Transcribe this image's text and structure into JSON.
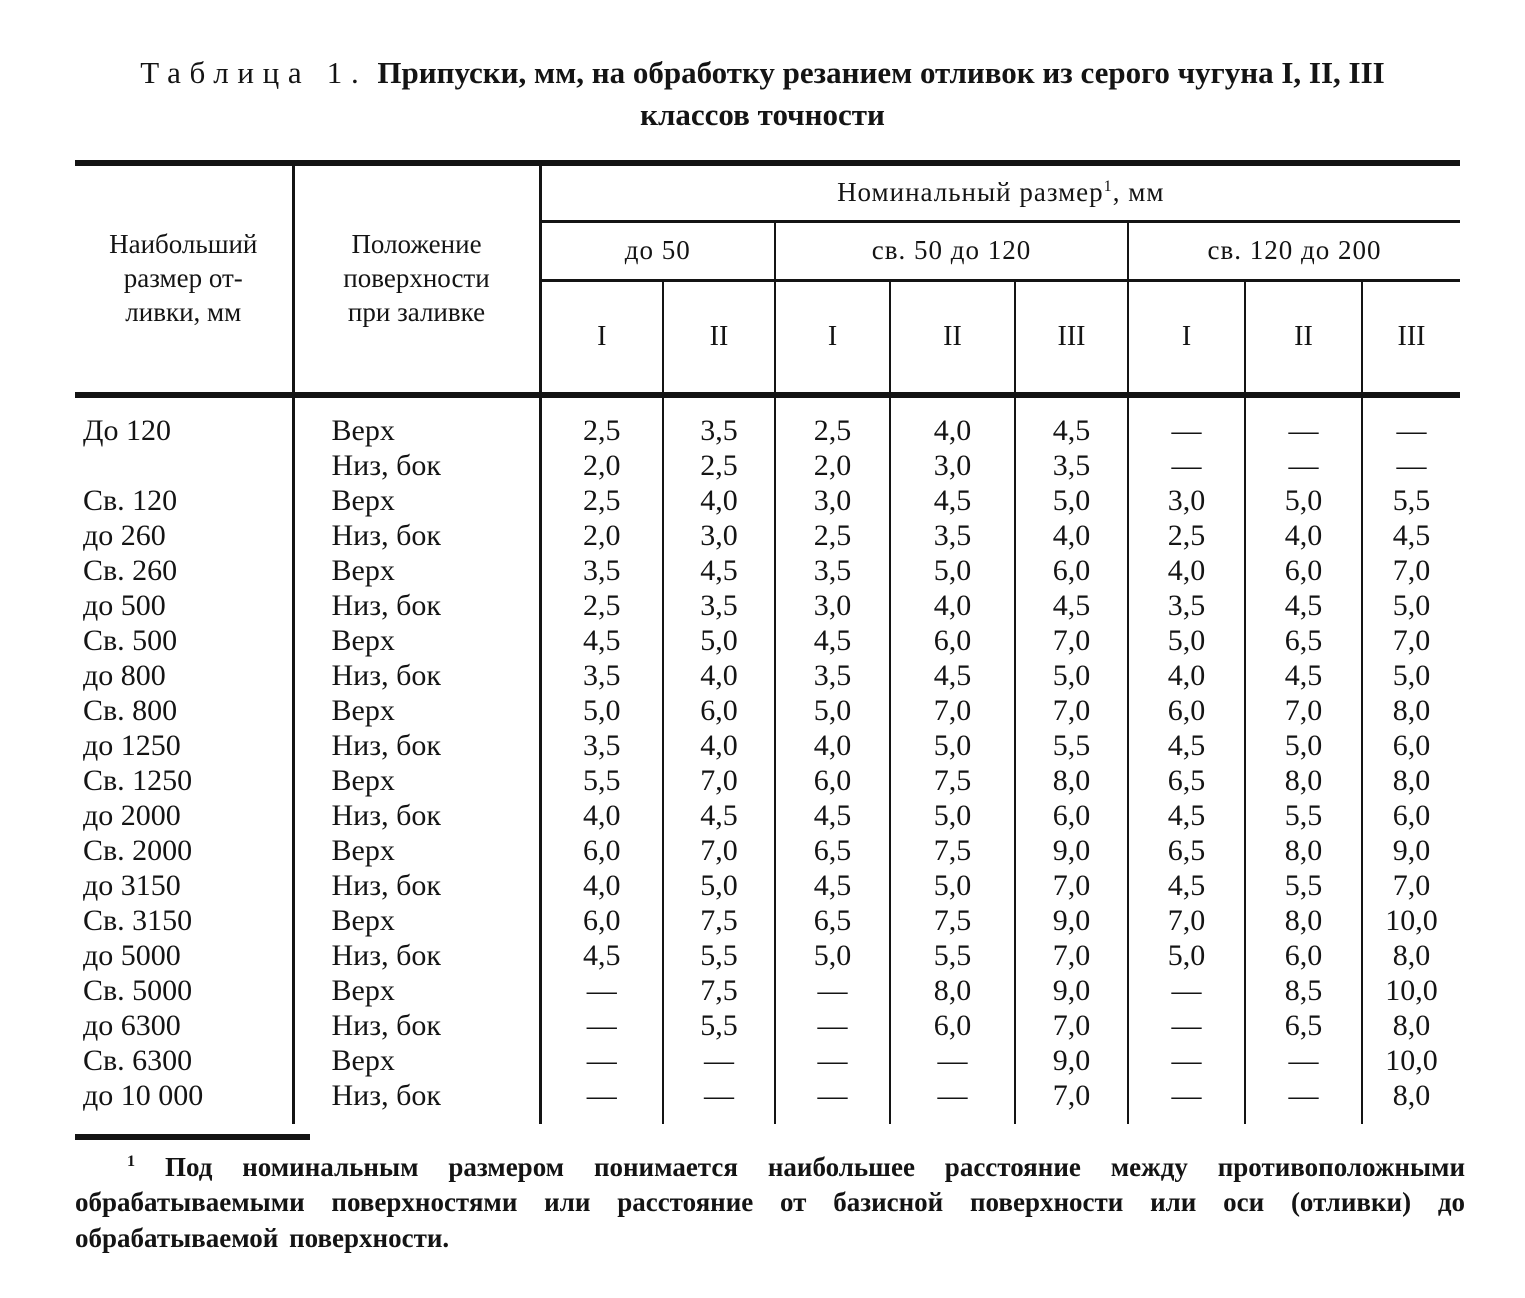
{
  "title": {
    "label": "Таблица 1.",
    "text": "Припуски, мм, на обработку резанием отливок из серого чугуна I, II, III классов точности"
  },
  "table": {
    "col1_header": "Наибольший\nразмер от-\nливки, мм",
    "col2_header": "Положение\nповерхности\nпри заливке",
    "nominal": {
      "label": "Номинальный размер",
      "sup": "1",
      "suffix": ", мм"
    },
    "groups": [
      {
        "label": "до 50",
        "classes": [
          "I",
          "II"
        ]
      },
      {
        "label": "св. 50 до 120",
        "classes": [
          "I",
          "II",
          "III"
        ]
      },
      {
        "label": "св. 120 до 200",
        "classes": [
          "I",
          "II",
          "III"
        ]
      }
    ],
    "rows": [
      {
        "size": "До 120",
        "position": "Верх",
        "values": [
          "2,5",
          "3,5",
          "2,5",
          "4,0",
          "4,5",
          "—",
          "—",
          "—"
        ]
      },
      {
        "size": "",
        "position": "Низ, бок",
        "values": [
          "2,0",
          "2,5",
          "2,0",
          "3,0",
          "3,5",
          "—",
          "—",
          "—"
        ]
      },
      {
        "size": "Св. 120",
        "position": "Верх",
        "values": [
          "2,5",
          "4,0",
          "3,0",
          "4,5",
          "5,0",
          "3,0",
          "5,0",
          "5,5"
        ]
      },
      {
        "size": "до 260",
        "position": "Низ, бок",
        "values": [
          "2,0",
          "3,0",
          "2,5",
          "3,5",
          "4,0",
          "2,5",
          "4,0",
          "4,5"
        ]
      },
      {
        "size": "Св. 260",
        "position": "Верх",
        "values": [
          "3,5",
          "4,5",
          "3,5",
          "5,0",
          "6,0",
          "4,0",
          "6,0",
          "7,0"
        ]
      },
      {
        "size": "до 500",
        "position": "Низ, бок",
        "values": [
          "2,5",
          "3,5",
          "3,0",
          "4,0",
          "4,5",
          "3,5",
          "4,5",
          "5,0"
        ]
      },
      {
        "size": "Св. 500",
        "position": "Верх",
        "values": [
          "4,5",
          "5,0",
          "4,5",
          "6,0",
          "7,0",
          "5,0",
          "6,5",
          "7,0"
        ]
      },
      {
        "size": "до 800",
        "position": "Низ, бок",
        "values": [
          "3,5",
          "4,0",
          "3,5",
          "4,5",
          "5,0",
          "4,0",
          "4,5",
          "5,0"
        ]
      },
      {
        "size": "Св. 800",
        "position": "Верх",
        "values": [
          "5,0",
          "6,0",
          "5,0",
          "7,0",
          "7,0",
          "6,0",
          "7,0",
          "8,0"
        ]
      },
      {
        "size": "до 1250",
        "position": "Низ, бок",
        "values": [
          "3,5",
          "4,0",
          "4,0",
          "5,0",
          "5,5",
          "4,5",
          "5,0",
          "6,0"
        ]
      },
      {
        "size": "Св. 1250",
        "position": "Верх",
        "values": [
          "5,5",
          "7,0",
          "6,0",
          "7,5",
          "8,0",
          "6,5",
          "8,0",
          "8,0"
        ]
      },
      {
        "size": "до 2000",
        "position": "Низ, бок",
        "values": [
          "4,0",
          "4,5",
          "4,5",
          "5,0",
          "6,0",
          "4,5",
          "5,5",
          "6,0"
        ]
      },
      {
        "size": "Св. 2000",
        "position": "Верх",
        "values": [
          "6,0",
          "7,0",
          "6,5",
          "7,5",
          "9,0",
          "6,5",
          "8,0",
          "9,0"
        ]
      },
      {
        "size": "до 3150",
        "position": "Низ, бок",
        "values": [
          "4,0",
          "5,0",
          "4,5",
          "5,0",
          "7,0",
          "4,5",
          "5,5",
          "7,0"
        ]
      },
      {
        "size": "Св. 3150",
        "position": "Верх",
        "values": [
          "6,0",
          "7,5",
          "6,5",
          "7,5",
          "9,0",
          "7,0",
          "8,0",
          "10,0"
        ]
      },
      {
        "size": "до 5000",
        "position": "Низ, бок",
        "values": [
          "4,5",
          "5,5",
          "5,0",
          "5,5",
          "7,0",
          "5,0",
          "6,0",
          "8,0"
        ]
      },
      {
        "size": "Св. 5000",
        "position": "Верх",
        "values": [
          "—",
          "7,5",
          "—",
          "8,0",
          "9,0",
          "—",
          "8,5",
          "10,0"
        ]
      },
      {
        "size": "до 6300",
        "position": "Низ, бок",
        "values": [
          "—",
          "5,5",
          "—",
          "6,0",
          "7,0",
          "—",
          "6,5",
          "8,0"
        ]
      },
      {
        "size": "Св. 6300",
        "position": "Верх",
        "values": [
          "—",
          "—",
          "—",
          "—",
          "9,0",
          "—",
          "—",
          "10,0"
        ]
      },
      {
        "size": "до 10 000",
        "position": "Низ, бок",
        "values": [
          "—",
          "—",
          "—",
          "—",
          "7,0",
          "—",
          "—",
          "8,0"
        ]
      }
    ]
  },
  "footnote": {
    "sup": "1",
    "text": "Под номинальным размером понимается наибольшее расстояние между противоположными обрабатываемыми поверхностями или расстояние от базисной поверхности или оси (отливки) до обрабатываемой поверхности."
  },
  "colors": {
    "ink": "#141414",
    "paper": "#ffffff"
  }
}
